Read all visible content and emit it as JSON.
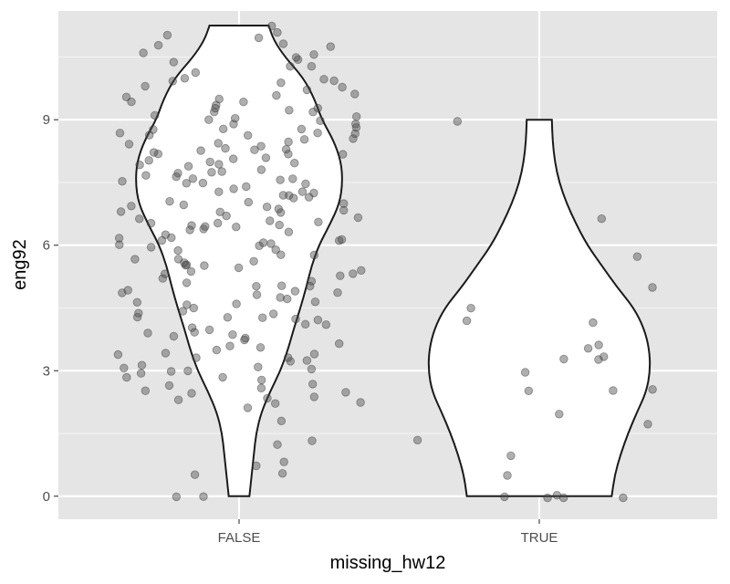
{
  "chart_data": {
    "type": "violin",
    "xlabel": "missing_hw12",
    "ylabel": "eng92",
    "categories": [
      "FALSE",
      "TRUE"
    ],
    "ylim": [
      -0.55,
      11.6
    ],
    "yticks": [
      0,
      3,
      6,
      9
    ],
    "grid": true,
    "legend": "none",
    "colors": {
      "panel": "#e5e5e5",
      "grid_major": "#ffffff",
      "grid_minor": "#f2f2f2",
      "violin_fill": "#ffffff",
      "violin_stroke": "#1a1a1a",
      "points": "#4d4d4d"
    },
    "violins": [
      {
        "category": "FALSE",
        "min": 0,
        "max": 11.25,
        "profile": [
          [
            11.25,
            0.4
          ],
          [
            10.9,
            0.47
          ],
          [
            10.5,
            0.62
          ],
          [
            10.0,
            0.87
          ],
          [
            9.5,
            1.02
          ],
          [
            9.0,
            1.12
          ],
          [
            8.5,
            1.28
          ],
          [
            8.0,
            1.38
          ],
          [
            7.5,
            1.4
          ],
          [
            7.0,
            1.36
          ],
          [
            6.5,
            1.23
          ],
          [
            6.0,
            1.08
          ],
          [
            5.5,
            0.98
          ],
          [
            5.0,
            0.91
          ],
          [
            4.5,
            0.83
          ],
          [
            4.0,
            0.74
          ],
          [
            3.5,
            0.66
          ],
          [
            3.0,
            0.56
          ],
          [
            2.5,
            0.42
          ],
          [
            2.0,
            0.3
          ],
          [
            1.5,
            0.23
          ],
          [
            1.0,
            0.2
          ],
          [
            0.5,
            0.17
          ],
          [
            0.0,
            0.14
          ]
        ]
      },
      {
        "category": "TRUE",
        "min": 0,
        "max": 9,
        "profile": [
          [
            9.0,
            0.17
          ],
          [
            8.5,
            0.18
          ],
          [
            8.0,
            0.21
          ],
          [
            7.5,
            0.27
          ],
          [
            7.0,
            0.37
          ],
          [
            6.5,
            0.5
          ],
          [
            6.0,
            0.65
          ],
          [
            5.5,
            0.85
          ],
          [
            5.0,
            1.05
          ],
          [
            4.5,
            1.28
          ],
          [
            4.0,
            1.42
          ],
          [
            3.5,
            1.49
          ],
          [
            3.0,
            1.5
          ],
          [
            2.5,
            1.45
          ],
          [
            2.0,
            1.32
          ],
          [
            1.5,
            1.2
          ],
          [
            1.0,
            1.1
          ],
          [
            0.5,
            1.02
          ],
          [
            0.0,
            0.98
          ]
        ]
      }
    ],
    "points": [
      {
        "category": "FALSE",
        "y": [
          11.1,
          11.2,
          10.8,
          10.75,
          10.25,
          10.45,
          10.3,
          10.98,
          11.0,
          10.72,
          10.6,
          10.5,
          10.0,
          9.75,
          9.5,
          9.3,
          9.12,
          9.0,
          8.9,
          8.8,
          8.75,
          8.7,
          8.6,
          8.5,
          8.4,
          8.3,
          8.2,
          8.0,
          7.9,
          7.8,
          7.75,
          7.6,
          7.5,
          7.3,
          7.25,
          7.0,
          6.9,
          6.8,
          6.7,
          6.5,
          6.4,
          6.25,
          6.1,
          6.0,
          5.9,
          5.75,
          5.5,
          5.4,
          5.2,
          5.0,
          4.8,
          4.6,
          4.3,
          4.25,
          4.0,
          3.8,
          3.5,
          3.4,
          3.2,
          3.0,
          2.75,
          2.5,
          2.3,
          2.2,
          1.8,
          1.2,
          0.85,
          0.75,
          0.55,
          0.5,
          0.0,
          0.0,
          9.8,
          9.6,
          9.4,
          9.2,
          8.9,
          8.6,
          8.3,
          8.1,
          7.95,
          7.7,
          7.45,
          7.2,
          7.05,
          6.85,
          6.6,
          6.35,
          6.2,
          5.95,
          5.65,
          5.35,
          5.1,
          4.9,
          4.7,
          4.45,
          4.15,
          3.9,
          3.6,
          3.3,
          3.1,
          2.85,
          2.6,
          2.45,
          2.35,
          9.95,
          9.55,
          9.15,
          8.85,
          8.45,
          8.15,
          7.85,
          7.55,
          7.15,
          6.75,
          6.45,
          6.05,
          5.65,
          5.25,
          4.85,
          4.55,
          4.2,
          3.75,
          3.45,
          2.95,
          2.7,
          10.1,
          9.7,
          9.25,
          8.95,
          8.55,
          8.25,
          7.65,
          7.35,
          6.95,
          6.55,
          6.15,
          5.85,
          5.45,
          5.05,
          4.65,
          4.35,
          3.95,
          3.55,
          3.25,
          2.8,
          1.3,
          10.4,
          9.85,
          9.35,
          8.65,
          8.05,
          7.4,
          6.3,
          5.55,
          4.95,
          4.1,
          3.35,
          2.9,
          10.55,
          9.05,
          7.1,
          6.65,
          5.8,
          5.15,
          4.75,
          3.65,
          3.05,
          2.55,
          2.25,
          8.35,
          7.0,
          6.0,
          5.0,
          4.0,
          8.0,
          7.5,
          6.5,
          9.6,
          8.8,
          7.8,
          6.9,
          5.6,
          4.4,
          3.15,
          10.0,
          9.0,
          8.4,
          7.2,
          6.2,
          5.3,
          4.2,
          2.65,
          9.9,
          8.7,
          7.6,
          6.8,
          5.7,
          4.9,
          3.7,
          2.4,
          9.45,
          8.15,
          7.45,
          6.4,
          5.5,
          4.6,
          3.85,
          2.15,
          8.25,
          7.25,
          6.45,
          5.95,
          4.5,
          3.4,
          9.25,
          8.55,
          7.75,
          6.55,
          6.1,
          5.35,
          4.25,
          3.0,
          8.0,
          7.0,
          6.5
        ]
      },
      {
        "category": "TRUE",
        "y": [
          9.0,
          6.65,
          5.75,
          5.0,
          4.5,
          4.2,
          4.15,
          3.6,
          3.5,
          3.35,
          3.3,
          3.3,
          3.0,
          2.55,
          2.5,
          2.5,
          2.0,
          1.75,
          1.35,
          1.0,
          0.5,
          0.0,
          0.0,
          0.0,
          0.0,
          0.0
        ]
      }
    ]
  }
}
